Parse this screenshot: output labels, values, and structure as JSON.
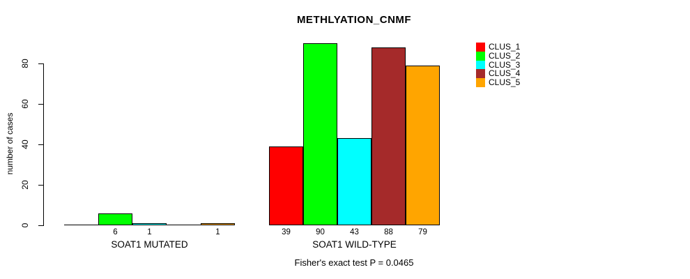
{
  "title": "METHLYATION_CNMF",
  "footer": "Fisher's exact test P = 0.0465",
  "chart_data": {
    "type": "bar",
    "title": "METHLYATION_CNMF",
    "xlabel": "",
    "ylabel": "number of cases",
    "categories": [
      "SOAT1 MUTATED",
      "SOAT1 WILD-TYPE"
    ],
    "series": [
      {
        "name": "CLUS_1",
        "color": "#FF0000",
        "values": [
          0,
          39
        ]
      },
      {
        "name": "CLUS_2",
        "color": "#00FF00",
        "values": [
          6,
          90
        ]
      },
      {
        "name": "CLUS_3",
        "color": "#00FFFF",
        "values": [
          1,
          43
        ]
      },
      {
        "name": "CLUS_4",
        "color": "#A52A2A",
        "values": [
          0,
          88
        ]
      },
      {
        "name": "CLUS_5",
        "color": "#FFA500",
        "values": [
          1,
          79
        ]
      }
    ],
    "bar_labels": [
      [
        "",
        "6",
        "1",
        "",
        "1"
      ],
      [
        "39",
        "90",
        "43",
        "88",
        "79"
      ]
    ],
    "yticks": [
      0,
      20,
      40,
      60,
      80
    ],
    "ylim": [
      0,
      93
    ],
    "grid": false,
    "legend_position": "top-right",
    "annotation": "Fisher's exact test P = 0.0465"
  }
}
